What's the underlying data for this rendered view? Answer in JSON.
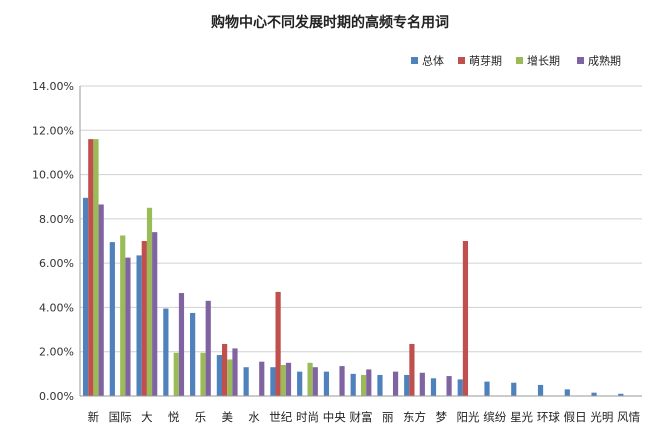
{
  "chart_data": {
    "type": "bar",
    "title": "购物中心不同发展时期的高频专名用词",
    "xlabel": "",
    "ylabel": "",
    "ylim": [
      0,
      14
    ],
    "yticks": [
      "0.00%",
      "2.00%",
      "4.00%",
      "6.00%",
      "8.00%",
      "10.00%",
      "12.00%",
      "14.00%"
    ],
    "grid": true,
    "legend_position": "top-right",
    "colors": [
      "#4f81bd",
      "#c0504d",
      "#9bbb59",
      "#8064a2"
    ],
    "categories": [
      "新",
      "国际",
      "大",
      "悦",
      "乐",
      "美",
      "水",
      "世纪",
      "时尚",
      "中央",
      "财富",
      "丽",
      "东方",
      "梦",
      "阳光",
      "缤纷",
      "星光",
      "环球",
      "假日",
      "光明",
      "风情"
    ],
    "series": [
      {
        "name": "总体",
        "values": [
          8.95,
          6.95,
          6.35,
          3.95,
          3.75,
          1.85,
          1.3,
          1.3,
          1.1,
          1.1,
          1.0,
          0.95,
          0.95,
          0.8,
          0.75,
          0.65,
          0.6,
          0.5,
          0.3,
          0.15,
          0.1
        ]
      },
      {
        "name": "萌芽期",
        "values": [
          11.6,
          0,
          7.0,
          0,
          0,
          2.35,
          0,
          4.7,
          0,
          0,
          0,
          0,
          2.35,
          0,
          7.0,
          0,
          0,
          0,
          0,
          0,
          0
        ]
      },
      {
        "name": "增长期",
        "values": [
          11.6,
          7.25,
          8.5,
          1.95,
          1.95,
          1.65,
          0,
          1.4,
          1.5,
          0,
          0.95,
          0,
          0,
          0,
          0,
          0,
          0,
          0,
          0,
          0,
          0
        ]
      },
      {
        "name": "成熟期",
        "values": [
          8.65,
          6.25,
          7.4,
          4.65,
          4.3,
          2.15,
          1.55,
          1.5,
          1.3,
          1.35,
          1.2,
          1.1,
          1.05,
          0.9,
          0,
          0,
          0,
          0,
          0,
          0,
          0
        ]
      }
    ]
  }
}
